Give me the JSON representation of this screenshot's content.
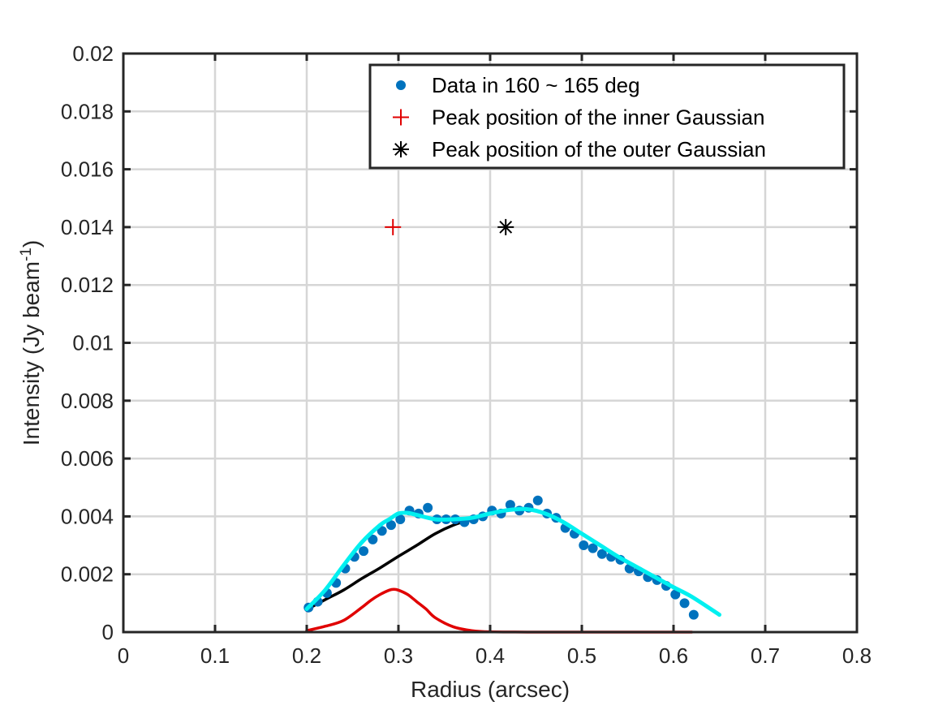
{
  "chart_data": {
    "type": "scatter",
    "title": "",
    "xlabel": "Radius (arcsec)",
    "ylabel": "Intensity (Jy beam",
    "ylabel_sup": "-1",
    "ylabel_tail": ")",
    "xlim": [
      0,
      0.8
    ],
    "ylim": [
      0,
      0.02
    ],
    "xticks": [
      0,
      0.1,
      0.2,
      0.3,
      0.4,
      0.5,
      0.6,
      0.7,
      0.8
    ],
    "xtick_labels": [
      "0",
      "0.1",
      "0.2",
      "0.3",
      "0.4",
      "0.5",
      "0.6",
      "0.7",
      "0.8"
    ],
    "yticks": [
      0,
      0.002,
      0.004,
      0.006,
      0.008,
      0.01,
      0.012,
      0.014,
      0.016,
      0.018,
      0.02
    ],
    "ytick_labels": [
      "0",
      "0.002",
      "0.004",
      "0.006",
      "0.008",
      "0.01",
      "0.012",
      "0.014",
      "0.016",
      "0.018",
      "0.02"
    ],
    "grid": true,
    "legend_position": "top-right",
    "series": [
      {
        "name": "Data in 160 ~ 165 deg",
        "kind": "points",
        "marker": "dot",
        "color": "#0072BD",
        "x": [
          0.202,
          0.212,
          0.222,
          0.232,
          0.242,
          0.252,
          0.262,
          0.272,
          0.282,
          0.292,
          0.302,
          0.312,
          0.322,
          0.332,
          0.342,
          0.352,
          0.362,
          0.372,
          0.382,
          0.392,
          0.402,
          0.412,
          0.422,
          0.432,
          0.442,
          0.452,
          0.462,
          0.472,
          0.482,
          0.492,
          0.502,
          0.512,
          0.522,
          0.532,
          0.542,
          0.552,
          0.562,
          0.572,
          0.582,
          0.592,
          0.602,
          0.612,
          0.622
        ],
        "y": [
          0.00085,
          0.00105,
          0.00135,
          0.0017,
          0.0022,
          0.0026,
          0.0028,
          0.0032,
          0.0035,
          0.0037,
          0.0039,
          0.0042,
          0.0041,
          0.0043,
          0.0039,
          0.0039,
          0.0039,
          0.0038,
          0.0039,
          0.004,
          0.0042,
          0.0041,
          0.0044,
          0.0042,
          0.0043,
          0.00455,
          0.0041,
          0.00395,
          0.0036,
          0.0034,
          0.003,
          0.0029,
          0.0027,
          0.0026,
          0.0025,
          0.0022,
          0.0021,
          0.0019,
          0.0018,
          0.0016,
          0.0013,
          0.001,
          0.0006
        ]
      },
      {
        "name": "",
        "kind": "line",
        "color": "#00F0F0",
        "x": [
          0.2,
          0.22,
          0.24,
          0.26,
          0.28,
          0.29,
          0.3,
          0.31,
          0.32,
          0.34,
          0.36,
          0.38,
          0.4,
          0.42,
          0.44,
          0.46,
          0.48,
          0.5,
          0.52,
          0.54,
          0.56,
          0.58,
          0.6,
          0.62,
          0.65
        ],
        "y": [
          0.0008,
          0.00145,
          0.0023,
          0.0031,
          0.0037,
          0.0039,
          0.0041,
          0.00412,
          0.00405,
          0.0039,
          0.0039,
          0.00395,
          0.0041,
          0.00422,
          0.00425,
          0.0041,
          0.0038,
          0.0034,
          0.003,
          0.0026,
          0.00225,
          0.0019,
          0.00155,
          0.00122,
          0.0006
        ]
      },
      {
        "name": "",
        "kind": "line",
        "color": "#000000",
        "x": [
          0.2,
          0.22,
          0.24,
          0.26,
          0.28,
          0.3,
          0.32,
          0.34,
          0.36,
          0.38,
          0.4
        ],
        "y": [
          0.00078,
          0.00112,
          0.00145,
          0.00185,
          0.00222,
          0.00262,
          0.003,
          0.0034,
          0.0037,
          0.0039,
          0.0041
        ]
      },
      {
        "name": "",
        "kind": "line",
        "color": "#E00000",
        "x": [
          0.2,
          0.22,
          0.24,
          0.26,
          0.27,
          0.28,
          0.29,
          0.295,
          0.3,
          0.31,
          0.32,
          0.33,
          0.34,
          0.36,
          0.38,
          0.4,
          0.45,
          0.5,
          0.55,
          0.6,
          0.62
        ],
        "y": [
          5e-05,
          0.0002,
          0.0004,
          0.00085,
          0.0011,
          0.0013,
          0.00145,
          0.00148,
          0.00145,
          0.0013,
          0.00105,
          0.0008,
          0.0005,
          0.00018,
          5e-05,
          1e-05,
          0,
          0,
          0,
          0,
          0
        ]
      },
      {
        "name": "Peak position of the inner Gaussian",
        "kind": "points",
        "marker": "plus",
        "color": "#E00000",
        "x": [
          0.294
        ],
        "y": [
          0.014
        ]
      },
      {
        "name": "Peak position of the outer Gaussian",
        "kind": "points",
        "marker": "asterisk",
        "color": "#000000",
        "x": [
          0.417
        ],
        "y": [
          0.014
        ]
      }
    ]
  }
}
